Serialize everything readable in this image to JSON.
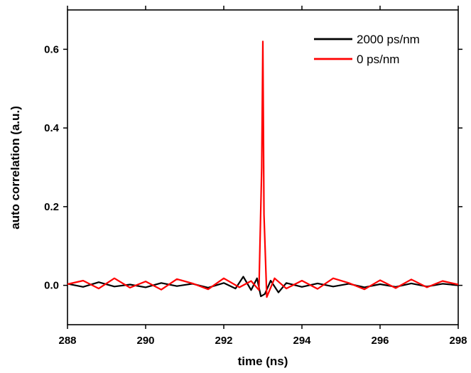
{
  "chart_data": {
    "type": "line",
    "title": "",
    "xlabel": "time (ns)",
    "ylabel": "auto correlation (a.u.)",
    "xlim": [
      288,
      298
    ],
    "ylim": [
      -0.1,
      0.7
    ],
    "xticks": [
      288,
      290,
      292,
      294,
      296,
      298
    ],
    "yticks": [
      0.0,
      0.2,
      0.4,
      0.6
    ],
    "ytick_labels": [
      "0.0",
      "0.2",
      "0.4",
      "0.6"
    ],
    "grid": false,
    "legend_position": "top-right",
    "series": [
      {
        "name": "2000 ps/nm",
        "color": "#000000",
        "x": [
          288.0,
          288.4,
          288.8,
          289.2,
          289.6,
          290.0,
          290.4,
          290.8,
          291.2,
          291.6,
          292.0,
          292.3,
          292.5,
          292.7,
          292.85,
          292.95,
          293.05,
          293.2,
          293.4,
          293.6,
          294.0,
          294.4,
          294.8,
          295.2,
          295.6,
          296.0,
          296.4,
          296.8,
          297.2,
          297.6,
          298.0
        ],
        "y": [
          0.004,
          -0.004,
          0.008,
          -0.003,
          0.002,
          -0.005,
          0.006,
          -0.002,
          0.004,
          -0.006,
          0.006,
          -0.008,
          0.022,
          -0.012,
          0.018,
          -0.028,
          -0.022,
          0.012,
          -0.018,
          0.006,
          -0.004,
          0.005,
          -0.003,
          0.004,
          -0.005,
          0.003,
          -0.004,
          0.005,
          -0.003,
          0.004,
          0.0
        ]
      },
      {
        "name": "0 ps/nm",
        "color": "#ff0000",
        "x": [
          288.0,
          288.4,
          288.8,
          289.2,
          289.6,
          290.0,
          290.4,
          290.8,
          291.2,
          291.6,
          292.0,
          292.4,
          292.7,
          292.9,
          292.97,
          293.0,
          293.03,
          293.1,
          293.3,
          293.6,
          294.0,
          294.4,
          294.8,
          295.2,
          295.6,
          296.0,
          296.4,
          296.8,
          297.2,
          297.6,
          298.0
        ],
        "y": [
          0.003,
          0.012,
          -0.008,
          0.018,
          -0.006,
          0.01,
          -0.011,
          0.016,
          0.005,
          -0.01,
          0.018,
          -0.005,
          0.011,
          -0.012,
          0.3,
          0.62,
          0.18,
          -0.03,
          0.018,
          -0.008,
          0.012,
          -0.009,
          0.018,
          0.006,
          -0.01,
          0.013,
          -0.007,
          0.015,
          -0.005,
          0.011,
          0.002
        ]
      }
    ]
  }
}
